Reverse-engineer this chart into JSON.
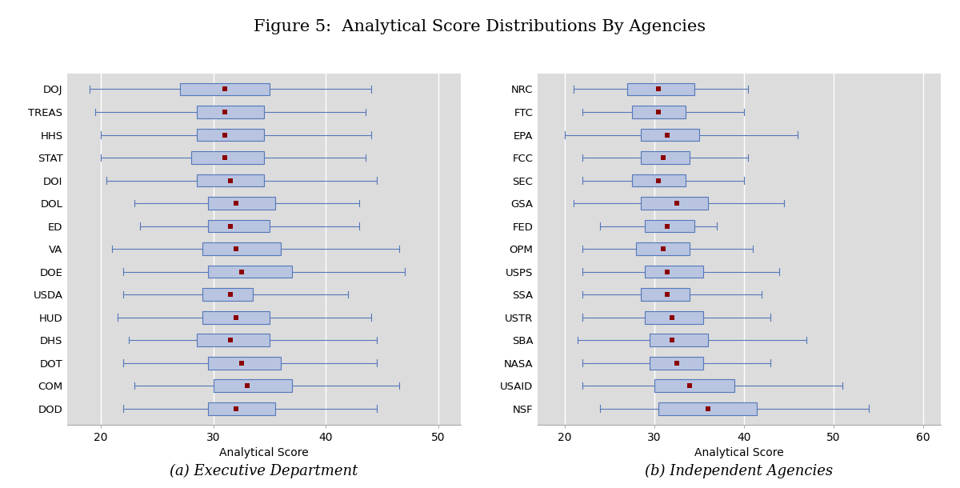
{
  "title": "Figure 5:  Analytical Score Distributions By Agencies",
  "subtitle_a": "(a) Executive Department",
  "subtitle_b": "(b) Independent Agencies",
  "xlabel": "Analytical Score",
  "bg_color": "#dcdcdc",
  "fig_bg_color": "#ffffff",
  "box_facecolor": "#b8c4e0",
  "box_edgecolor": "#5577bb",
  "median_color": "#8b0000",
  "whisker_color": "#5577bb",
  "grid_color": "#ffffff",
  "exec_agencies": [
    "DOJ",
    "TREAS",
    "HHS",
    "STAT",
    "DOI",
    "DOL",
    "ED",
    "VA",
    "DOE",
    "USDA",
    "HUD",
    "DHS",
    "DOT",
    "COM",
    "DOD"
  ],
  "exec_data": [
    {
      "whislo": 19.0,
      "q1": 27.0,
      "med": 31.0,
      "q3": 35.0,
      "whishi": 44.0
    },
    {
      "whislo": 19.5,
      "q1": 28.5,
      "med": 31.0,
      "q3": 34.5,
      "whishi": 43.5
    },
    {
      "whislo": 20.0,
      "q1": 28.5,
      "med": 31.0,
      "q3": 34.5,
      "whishi": 44.0
    },
    {
      "whislo": 20.0,
      "q1": 28.0,
      "med": 31.0,
      "q3": 34.5,
      "whishi": 43.5
    },
    {
      "whislo": 20.5,
      "q1": 28.5,
      "med": 31.5,
      "q3": 34.5,
      "whishi": 44.5
    },
    {
      "whislo": 23.0,
      "q1": 29.5,
      "med": 32.0,
      "q3": 35.5,
      "whishi": 43.0
    },
    {
      "whislo": 23.5,
      "q1": 29.5,
      "med": 31.5,
      "q3": 35.0,
      "whishi": 43.0
    },
    {
      "whislo": 21.0,
      "q1": 29.0,
      "med": 32.0,
      "q3": 36.0,
      "whishi": 46.5
    },
    {
      "whislo": 22.0,
      "q1": 29.5,
      "med": 32.5,
      "q3": 37.0,
      "whishi": 47.0
    },
    {
      "whislo": 22.0,
      "q1": 29.0,
      "med": 31.5,
      "q3": 33.5,
      "whishi": 42.0
    },
    {
      "whislo": 21.5,
      "q1": 29.0,
      "med": 32.0,
      "q3": 35.0,
      "whishi": 44.0
    },
    {
      "whislo": 22.5,
      "q1": 28.5,
      "med": 31.5,
      "q3": 35.0,
      "whishi": 44.5
    },
    {
      "whislo": 22.0,
      "q1": 29.5,
      "med": 32.5,
      "q3": 36.0,
      "whishi": 44.5
    },
    {
      "whislo": 23.0,
      "q1": 30.0,
      "med": 33.0,
      "q3": 37.0,
      "whishi": 46.5
    },
    {
      "whislo": 22.0,
      "q1": 29.5,
      "med": 32.0,
      "q3": 35.5,
      "whishi": 44.5
    }
  ],
  "exec_xlim": [
    17,
    52
  ],
  "exec_xticks": [
    20,
    30,
    40,
    50
  ],
  "indep_agencies": [
    "NRC",
    "FTC",
    "EPA",
    "FCC",
    "SEC",
    "GSA",
    "FED",
    "OPM",
    "USPS",
    "SSA",
    "USTR",
    "SBA",
    "NASA",
    "USAID",
    "NSF"
  ],
  "indep_data": [
    {
      "whislo": 21.0,
      "q1": 27.0,
      "med": 30.5,
      "q3": 34.5,
      "whishi": 40.5
    },
    {
      "whislo": 22.0,
      "q1": 27.5,
      "med": 30.5,
      "q3": 33.5,
      "whishi": 40.0
    },
    {
      "whislo": 20.0,
      "q1": 28.5,
      "med": 31.5,
      "q3": 35.0,
      "whishi": 46.0
    },
    {
      "whislo": 22.0,
      "q1": 28.5,
      "med": 31.0,
      "q3": 34.0,
      "whishi": 40.5
    },
    {
      "whislo": 22.0,
      "q1": 27.5,
      "med": 30.5,
      "q3": 33.5,
      "whishi": 40.0
    },
    {
      "whislo": 21.0,
      "q1": 28.5,
      "med": 32.5,
      "q3": 36.0,
      "whishi": 44.5
    },
    {
      "whislo": 24.0,
      "q1": 29.0,
      "med": 31.5,
      "q3": 34.5,
      "whishi": 37.0
    },
    {
      "whislo": 22.0,
      "q1": 28.0,
      "med": 31.0,
      "q3": 34.0,
      "whishi": 41.0
    },
    {
      "whislo": 22.0,
      "q1": 29.0,
      "med": 31.5,
      "q3": 35.5,
      "whishi": 44.0
    },
    {
      "whislo": 22.0,
      "q1": 28.5,
      "med": 31.5,
      "q3": 34.0,
      "whishi": 42.0
    },
    {
      "whislo": 22.0,
      "q1": 29.0,
      "med": 32.0,
      "q3": 35.5,
      "whishi": 43.0
    },
    {
      "whislo": 21.5,
      "q1": 29.5,
      "med": 32.0,
      "q3": 36.0,
      "whishi": 47.0
    },
    {
      "whislo": 22.0,
      "q1": 29.5,
      "med": 32.5,
      "q3": 35.5,
      "whishi": 43.0
    },
    {
      "whislo": 22.0,
      "q1": 30.0,
      "med": 34.0,
      "q3": 39.0,
      "whishi": 51.0
    },
    {
      "whislo": 24.0,
      "q1": 30.5,
      "med": 36.0,
      "q3": 41.5,
      "whishi": 54.0
    }
  ],
  "indep_xlim": [
    17,
    62
  ],
  "indep_xticks": [
    20,
    30,
    40,
    50,
    60
  ]
}
